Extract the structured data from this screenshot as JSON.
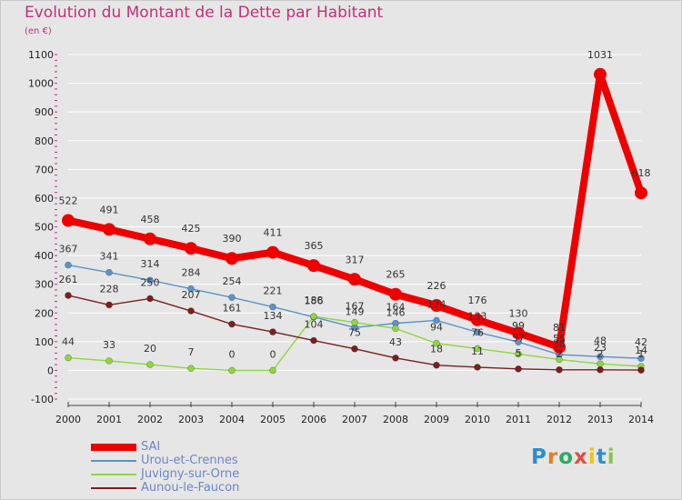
{
  "title": "Evolution du Montant de la Dette par Habitant",
  "subtitle": "(en €)",
  "logo_text": "Proxiti",
  "chart_data": {
    "type": "line",
    "title": "Evolution du Montant de la Dette par Habitant",
    "ylabel": "(en €)",
    "ylim": [
      -100,
      1100
    ],
    "yticks": [
      "-100",
      "0",
      "100",
      "200",
      "300",
      "400",
      "500",
      "600",
      "700",
      "800",
      "900",
      "1000",
      "1100"
    ],
    "x": [
      "2000",
      "2001",
      "2002",
      "2003",
      "2004",
      "2005",
      "2006",
      "2007",
      "2008",
      "2009",
      "2010",
      "2011",
      "2012",
      "2013",
      "2014"
    ],
    "legend_position": "bottom-left",
    "series": [
      {
        "name": "SAI",
        "color": "#ee0000",
        "values": [
          522,
          491,
          458,
          425,
          390,
          411,
          365,
          317,
          265,
          226,
          176,
          130,
          81,
          1031,
          618
        ]
      },
      {
        "name": "Urou-et-Crennes",
        "color": "#5b93c9",
        "values": [
          367,
          341,
          314,
          284,
          254,
          221,
          186,
          149,
          164,
          174,
          133,
          99,
          55,
          48,
          42
        ]
      },
      {
        "name": "Juvigny-sur-Orne",
        "color": "#8fd640",
        "values": [
          44,
          33,
          20,
          7,
          0,
          0,
          188,
          167,
          146,
          94,
          76,
          57,
          38,
          23,
          14
        ]
      },
      {
        "name": "Aunou-le-Faucon",
        "color": "#7a1f1f",
        "values": [
          261,
          228,
          250,
          207,
          161,
          134,
          104,
          75,
          43,
          18,
          11,
          5,
          2,
          2,
          1
        ]
      }
    ]
  }
}
